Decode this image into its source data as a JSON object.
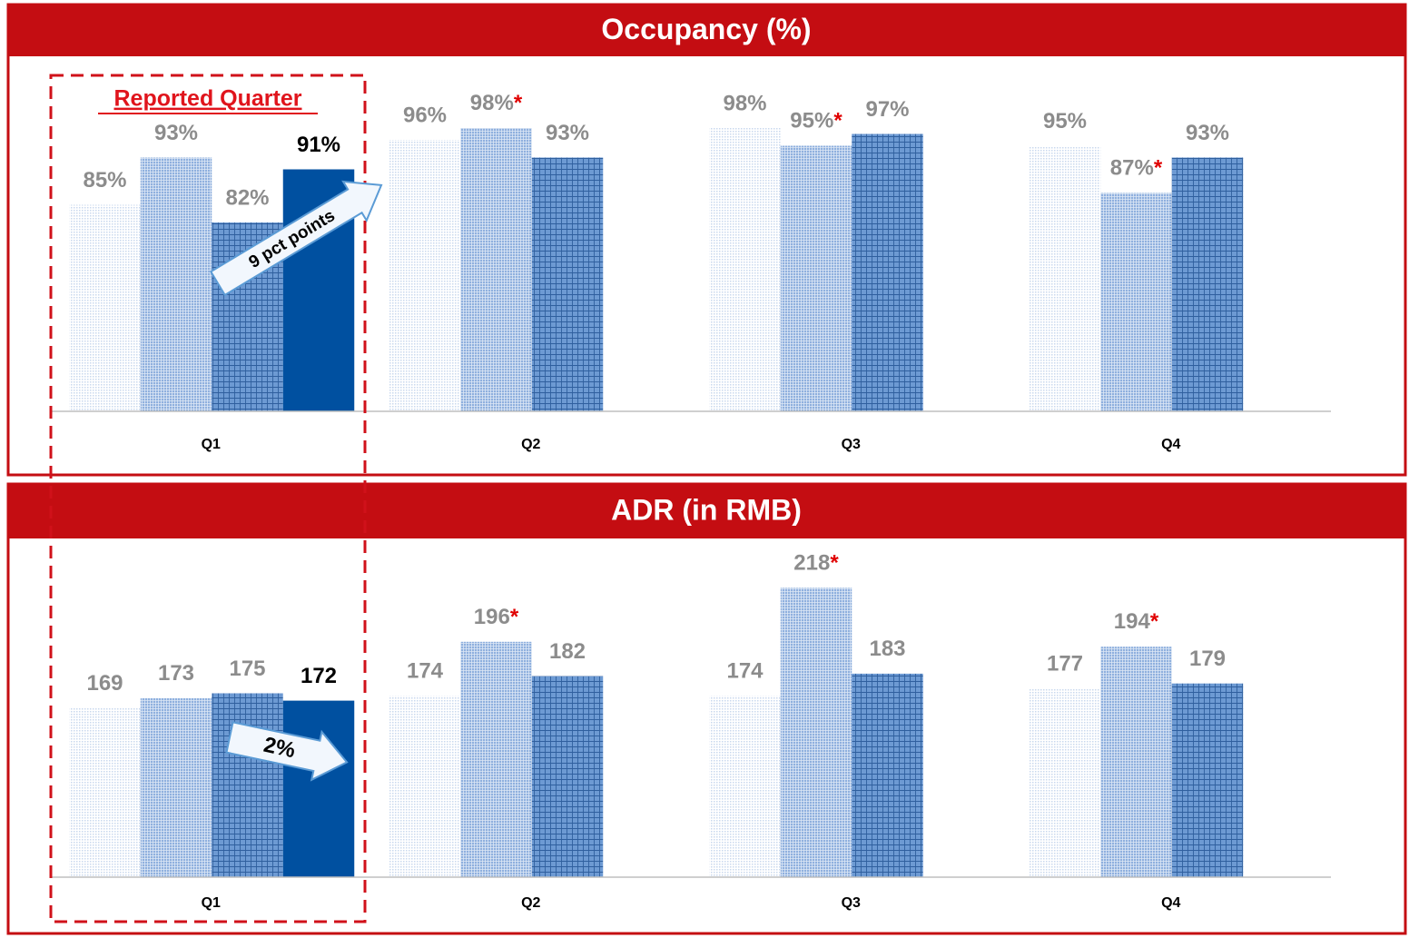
{
  "chart_data": [
    {
      "type": "bar",
      "title": "Occupancy (%)",
      "categories": [
        "Q1",
        "Q2",
        "Q3",
        "Q4"
      ],
      "ylim": [
        50,
        100
      ],
      "series": [
        {
          "color": "#c9d8ee",
          "fill_style": "dots",
          "values": [
            85,
            96,
            98,
            95
          ],
          "value_labels": [
            "85%",
            "96%",
            "98%",
            "95%"
          ]
        },
        {
          "color": "#8fb0de",
          "fill_style": "cross",
          "values": [
            93,
            98,
            95,
            87
          ],
          "value_labels": [
            "93%",
            "98%*",
            "95%*",
            "87%*"
          ]
        },
        {
          "color": "#6d9ad3",
          "fill_style": "grid",
          "values": [
            82,
            93,
            97,
            93
          ],
          "value_labels": [
            "82%",
            "93%",
            "97%",
            "93%"
          ]
        },
        {
          "color": "#0050a0",
          "fill_style": "solid",
          "values": [
            91,
            null,
            null,
            null
          ],
          "value_labels": [
            "91%",
            null,
            null,
            null
          ]
        }
      ],
      "annotations": [
        "Reported Quarter",
        "9 pct points"
      ]
    },
    {
      "type": "bar",
      "title": "ADR (in RMB)",
      "categories": [
        "Q1",
        "Q2",
        "Q3",
        "Q4"
      ],
      "ylim": [
        100,
        250
      ],
      "series": [
        {
          "color": "#c9d8ee",
          "fill_style": "dots",
          "values": [
            169,
            174,
            174,
            177
          ]
        },
        {
          "color": "#8fb0de",
          "fill_style": "cross",
          "values": [
            173,
            196,
            218,
            194
          ],
          "value_labels": [
            "173",
            "196*",
            "218*",
            "194*"
          ]
        },
        {
          "color": "#6d9ad3",
          "fill_style": "grid",
          "values": [
            175,
            182,
            183,
            179
          ]
        },
        {
          "color": "#0050a0",
          "fill_style": "solid",
          "values": [
            172,
            null,
            null,
            null
          ]
        }
      ],
      "annotations": [
        "2%"
      ]
    }
  ]
}
